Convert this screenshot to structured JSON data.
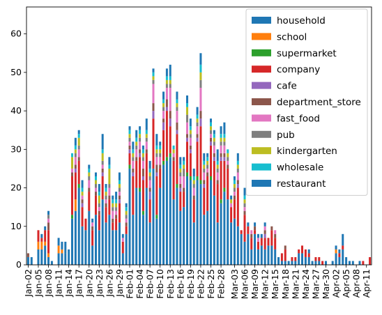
{
  "chart_data": {
    "type": "bar",
    "stacked": true,
    "title": "",
    "xlabel": "",
    "ylabel": "",
    "ylim": [
      0,
      67
    ],
    "yticks": [
      0,
      10,
      20,
      30,
      40,
      50,
      60
    ],
    "grid": false,
    "legend_position": "top-right",
    "tick_labels_shown": [
      "Jan-02",
      "Jan-05",
      "Jan-08",
      "Jan-11",
      "Jan-14",
      "Jan-17",
      "Jan-20",
      "Jan-23",
      "Jan-26",
      "Jan-29",
      "Feb-01",
      "Feb-04",
      "Feb-07",
      "Feb-10",
      "Feb-13",
      "Feb-16",
      "Feb-19",
      "Feb-22",
      "Feb-25",
      "Feb-28",
      "Mar-03",
      "Mar-06",
      "Mar-09",
      "Mar-12",
      "Mar-15",
      "Mar-18",
      "Mar-21",
      "Mar-24",
      "Mar-27",
      "Mar-30",
      "Apr-02",
      "Apr-05",
      "Apr-08",
      "Apr-11"
    ],
    "categories": [
      "Jan-02",
      "Jan-03",
      "Jan-04",
      "Jan-05",
      "Jan-06",
      "Jan-07",
      "Jan-08",
      "Jan-09",
      "Jan-10",
      "Jan-11",
      "Jan-12",
      "Jan-13",
      "Jan-14",
      "Jan-15",
      "Jan-16",
      "Jan-17",
      "Jan-18",
      "Jan-19",
      "Jan-20",
      "Jan-21",
      "Jan-22",
      "Jan-23",
      "Jan-24",
      "Jan-25",
      "Jan-26",
      "Jan-27",
      "Jan-28",
      "Jan-29",
      "Jan-30",
      "Jan-31",
      "Feb-01",
      "Feb-02",
      "Feb-03",
      "Feb-04",
      "Feb-05",
      "Feb-06",
      "Feb-07",
      "Feb-08",
      "Feb-09",
      "Feb-10",
      "Feb-11",
      "Feb-12",
      "Feb-13",
      "Feb-14",
      "Feb-15",
      "Feb-16",
      "Feb-17",
      "Feb-18",
      "Feb-19",
      "Feb-20",
      "Feb-21",
      "Feb-22",
      "Feb-23",
      "Feb-24",
      "Feb-25",
      "Feb-26",
      "Feb-27",
      "Feb-28",
      "Feb-29",
      "Mar-01",
      "Mar-02",
      "Mar-03",
      "Mar-04",
      "Mar-05",
      "Mar-06",
      "Mar-07",
      "Mar-08",
      "Mar-09",
      "Mar-10",
      "Mar-11",
      "Mar-12",
      "Mar-13",
      "Mar-14",
      "Mar-15",
      "Mar-16",
      "Mar-17",
      "Mar-18",
      "Mar-19",
      "Mar-20",
      "Mar-21",
      "Mar-22",
      "Mar-23",
      "Mar-24",
      "Mar-25",
      "Mar-26",
      "Mar-27",
      "Mar-28",
      "Mar-29",
      "Mar-30",
      "Mar-31",
      "Apr-01",
      "Apr-02",
      "Apr-03",
      "Apr-04",
      "Apr-05",
      "Apr-06",
      "Apr-07",
      "Apr-08",
      "Apr-09",
      "Apr-10",
      "Apr-11",
      "Apr-12"
    ],
    "series": [
      {
        "name": "household",
        "color": "#1f77b4",
        "values": [
          2,
          1,
          0,
          4,
          4,
          5,
          2,
          1,
          0,
          3,
          3,
          3,
          1,
          12,
          14,
          20,
          10,
          9,
          14,
          5,
          13,
          9,
          17,
          11,
          13,
          9,
          9,
          11,
          3,
          8,
          25,
          13,
          20,
          19,
          13,
          20,
          11,
          25,
          12,
          20,
          26,
          27,
          28,
          17,
          20,
          14,
          15,
          23,
          22,
          11,
          22,
          21,
          13,
          14,
          22,
          18,
          11,
          16,
          19,
          17,
          11,
          12,
          10,
          8,
          6,
          8,
          4,
          8,
          4,
          5,
          4,
          5,
          5,
          4,
          2,
          1,
          1,
          1,
          1,
          1,
          3,
          3,
          2,
          2,
          1,
          1,
          1,
          0,
          1,
          0,
          1,
          3,
          2,
          4,
          2,
          1,
          1,
          0,
          1,
          0,
          0,
          0
        ]
      },
      {
        "name": "school",
        "color": "#ff7f0e",
        "values": [
          0,
          0,
          0,
          2,
          2,
          1,
          1,
          0,
          0,
          2,
          1,
          0,
          0,
          0,
          3,
          0,
          0,
          0,
          0,
          0,
          0,
          0,
          0,
          0,
          0,
          0,
          0,
          0,
          0,
          0,
          0,
          0,
          0,
          0,
          0,
          0,
          0,
          0,
          0,
          0,
          0,
          0,
          0,
          0,
          0,
          0,
          0,
          0,
          0,
          0,
          0,
          0,
          0,
          0,
          0,
          0,
          0,
          0,
          0,
          0,
          0,
          0,
          0,
          0,
          0,
          0,
          0,
          0,
          0,
          0,
          0,
          0,
          0,
          0,
          0,
          0,
          0,
          0,
          0,
          0,
          0,
          0,
          0,
          0,
          0,
          0,
          0,
          0,
          0,
          0,
          0,
          1,
          0,
          0,
          0,
          0,
          0,
          0,
          0,
          0,
          0,
          0
        ]
      },
      {
        "name": "supermarket",
        "color": "#2ca02c",
        "values": [
          0,
          0,
          0,
          0,
          0,
          0,
          0,
          0,
          0,
          0,
          0,
          0,
          0,
          1,
          0,
          1,
          0,
          0,
          0,
          0,
          0,
          0,
          0,
          0,
          0,
          0,
          0,
          0,
          0,
          0,
          1,
          0,
          0,
          1,
          1,
          0,
          0,
          0,
          1,
          0,
          1,
          1,
          1,
          0,
          1,
          0,
          0,
          1,
          1,
          0,
          1,
          1,
          0,
          0,
          1,
          0,
          0,
          1,
          1,
          0,
          0,
          0,
          0,
          0,
          0,
          0,
          0,
          0,
          0,
          0,
          0,
          0,
          0,
          0,
          0,
          0,
          0,
          0,
          0,
          0,
          0,
          0,
          0,
          0,
          0,
          0,
          0,
          0,
          0,
          0,
          0,
          0,
          0,
          0,
          0,
          0,
          0,
          0,
          0,
          0,
          0,
          0
        ]
      },
      {
        "name": "company",
        "color": "#d62728",
        "values": [
          0,
          0,
          0,
          3,
          1,
          3,
          6,
          0,
          0,
          0,
          0,
          0,
          0,
          10,
          7,
          6,
          5,
          3,
          5,
          4,
          5,
          4,
          6,
          4,
          4,
          2,
          3,
          5,
          3,
          2,
          3,
          10,
          7,
          8,
          8,
          9,
          6,
          13,
          10,
          5,
          8,
          12,
          7,
          10,
          13,
          5,
          4,
          8,
          6,
          6,
          9,
          14,
          7,
          9,
          8,
          9,
          10,
          10,
          7,
          8,
          4,
          5,
          10,
          1,
          7,
          2,
          3,
          1,
          2,
          2,
          3,
          2,
          4,
          3,
          0,
          2,
          3,
          0,
          1,
          1,
          1,
          2,
          2,
          1,
          0,
          1,
          1,
          1,
          0,
          0,
          0,
          0,
          1,
          1,
          0,
          0,
          0,
          0,
          0,
          1,
          0,
          2
        ]
      },
      {
        "name": "cafe",
        "color": "#9467bd",
        "values": [
          0,
          0,
          0,
          0,
          0,
          0,
          0,
          0,
          0,
          0,
          0,
          0,
          0,
          0,
          1,
          0,
          1,
          0,
          0,
          0,
          0,
          0,
          1,
          0,
          0,
          0,
          0,
          1,
          0,
          0,
          1,
          1,
          0,
          1,
          1,
          0,
          2,
          2,
          1,
          0,
          2,
          1,
          2,
          0,
          1,
          1,
          0,
          1,
          1,
          0,
          1,
          2,
          1,
          0,
          1,
          1,
          0,
          1,
          1,
          0,
          0,
          0,
          1,
          0,
          0,
          0,
          0,
          0,
          0,
          0,
          1,
          0,
          0,
          0,
          0,
          0,
          0,
          0,
          0,
          0,
          0,
          0,
          0,
          0,
          0,
          0,
          0,
          0,
          0,
          0,
          0,
          0,
          0,
          0,
          0,
          0,
          0,
          0,
          0,
          0,
          0,
          0
        ]
      },
      {
        "name": "department_store",
        "color": "#8c564b",
        "values": [
          1,
          0,
          0,
          0,
          0,
          0,
          2,
          0,
          0,
          0,
          0,
          0,
          0,
          1,
          1,
          1,
          1,
          0,
          1,
          1,
          1,
          1,
          1,
          1,
          1,
          1,
          1,
          1,
          0,
          1,
          1,
          1,
          1,
          1,
          2,
          1,
          1,
          2,
          2,
          1,
          1,
          2,
          2,
          1,
          2,
          1,
          1,
          1,
          1,
          1,
          1,
          2,
          1,
          1,
          1,
          1,
          1,
          1,
          1,
          1,
          0,
          1,
          1,
          0,
          1,
          0,
          1,
          1,
          0,
          0,
          1,
          0,
          1,
          1,
          0,
          0,
          1,
          0,
          0,
          0,
          0,
          0,
          0,
          0,
          0,
          0,
          0,
          0,
          0,
          0,
          0,
          0,
          0,
          0,
          0,
          0,
          0,
          0,
          0,
          0,
          0,
          0
        ]
      },
      {
        "name": "fast_food",
        "color": "#e377c2",
        "values": [
          0,
          0,
          0,
          0,
          0,
          0,
          1,
          0,
          0,
          0,
          0,
          0,
          0,
          1,
          2,
          2,
          1,
          0,
          2,
          1,
          1,
          1,
          1,
          1,
          2,
          2,
          1,
          1,
          1,
          1,
          1,
          2,
          2,
          2,
          2,
          2,
          2,
          5,
          2,
          2,
          2,
          3,
          6,
          1,
          3,
          2,
          3,
          3,
          2,
          2,
          2,
          6,
          2,
          1,
          1,
          2,
          2,
          2,
          2,
          1,
          1,
          1,
          2,
          0,
          1,
          0,
          1,
          0,
          1,
          0,
          1,
          0,
          0,
          1,
          0,
          0,
          0,
          0,
          0,
          0,
          0,
          0,
          0,
          0,
          0,
          0,
          0,
          0,
          0,
          0,
          0,
          0,
          0,
          0,
          0,
          0,
          0,
          0,
          0,
          0,
          0,
          0
        ]
      },
      {
        "name": "pub",
        "color": "#7f7f7f",
        "values": [
          0,
          0,
          0,
          0,
          0,
          0,
          1,
          0,
          0,
          0,
          0,
          0,
          0,
          0,
          1,
          1,
          0,
          0,
          1,
          0,
          1,
          1,
          1,
          1,
          1,
          1,
          1,
          1,
          0,
          1,
          1,
          1,
          1,
          1,
          1,
          1,
          1,
          1,
          1,
          1,
          1,
          1,
          1,
          0,
          1,
          1,
          2,
          2,
          1,
          1,
          1,
          2,
          1,
          1,
          1,
          1,
          1,
          1,
          1,
          1,
          0,
          1,
          1,
          0,
          1,
          0,
          0,
          0,
          0,
          0,
          0,
          0,
          0,
          0,
          0,
          0,
          0,
          0,
          0,
          0,
          0,
          0,
          0,
          0,
          0,
          0,
          0,
          0,
          0,
          0,
          0,
          0,
          0,
          0,
          0,
          0,
          0,
          0,
          0,
          0,
          0,
          0
        ]
      },
      {
        "name": "kindergarten",
        "color": "#bcbd22",
        "values": [
          0,
          0,
          0,
          0,
          0,
          0,
          0,
          0,
          0,
          0,
          0,
          0,
          0,
          3,
          1,
          2,
          1,
          0,
          1,
          0,
          1,
          2,
          2,
          1,
          4,
          1,
          1,
          1,
          0,
          1,
          1,
          1,
          1,
          1,
          1,
          1,
          1,
          1,
          1,
          1,
          1,
          1,
          1,
          1,
          1,
          1,
          1,
          2,
          1,
          1,
          1,
          2,
          1,
          1,
          1,
          1,
          1,
          1,
          1,
          1,
          1,
          1,
          1,
          0,
          1,
          0,
          0,
          0,
          0,
          0,
          0,
          0,
          0,
          0,
          0,
          0,
          0,
          0,
          0,
          0,
          0,
          0,
          0,
          0,
          0,
          0,
          0,
          0,
          0,
          0,
          0,
          0,
          0,
          0,
          0,
          0,
          0,
          0,
          0,
          0,
          0,
          0
        ]
      },
      {
        "name": "wholesale",
        "color": "#17becf",
        "values": [
          0,
          0,
          0,
          0,
          0,
          0,
          0,
          0,
          0,
          0,
          0,
          0,
          0,
          1,
          1,
          1,
          1,
          0,
          1,
          0,
          1,
          1,
          1,
          1,
          1,
          1,
          1,
          1,
          0,
          1,
          1,
          1,
          1,
          1,
          1,
          1,
          1,
          1,
          1,
          1,
          1,
          1,
          1,
          1,
          1,
          1,
          1,
          1,
          1,
          1,
          1,
          2,
          1,
          1,
          1,
          1,
          1,
          1,
          1,
          1,
          0,
          1,
          1,
          0,
          1,
          0,
          0,
          0,
          0,
          0,
          0,
          0,
          0,
          0,
          0,
          0,
          0,
          0,
          0,
          0,
          0,
          0,
          0,
          0,
          0,
          0,
          0,
          0,
          0,
          0,
          0,
          0,
          0,
          0,
          0,
          0,
          0,
          0,
          0,
          0,
          0,
          0
        ]
      },
      {
        "name": "restaurant",
        "color": "#1f77b4",
        "values": [
          0,
          1,
          0,
          0,
          1,
          1,
          1,
          0,
          0,
          2,
          2,
          3,
          3,
          0,
          2,
          1,
          2,
          0,
          1,
          1,
          1,
          2,
          4,
          1,
          2,
          1,
          2,
          2,
          1,
          1,
          1,
          2,
          2,
          1,
          1,
          3,
          2,
          1,
          3,
          1,
          2,
          2,
          3,
          0,
          2,
          2,
          1,
          2,
          2,
          2,
          2,
          3,
          2,
          1,
          1,
          1,
          3,
          2,
          3,
          0,
          1,
          1,
          2,
          0,
          2,
          1,
          0,
          1,
          1,
          1,
          1,
          0,
          0,
          0,
          0,
          0,
          0,
          0,
          0,
          0,
          0,
          0,
          0,
          1,
          0,
          0,
          0,
          0,
          0,
          0,
          0,
          1,
          1,
          3,
          0,
          0,
          0,
          0,
          0,
          0,
          0,
          0
        ]
      }
    ]
  }
}
